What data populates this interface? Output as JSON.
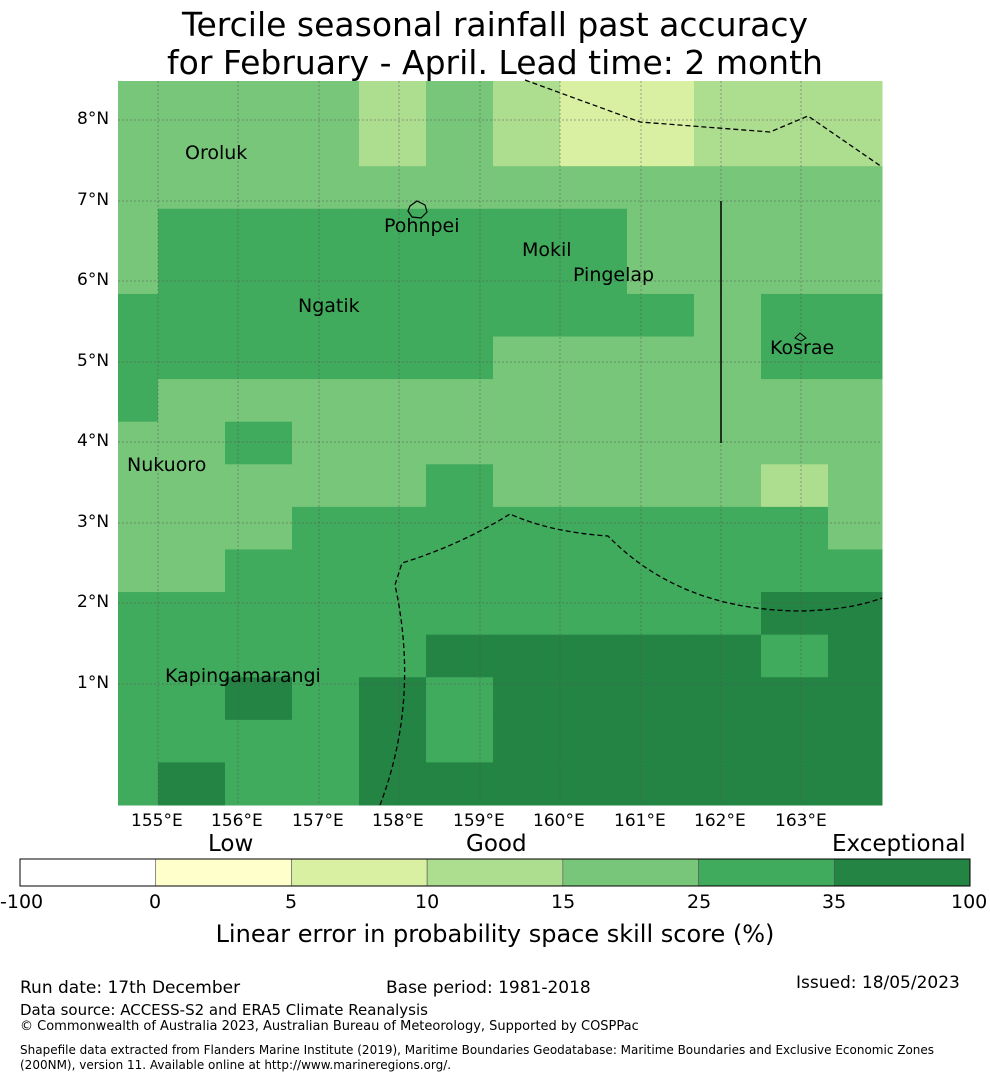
{
  "title_line1": "Tercile seasonal rainfall past accuracy",
  "title_line2": "for February - April. Lead time: 2 month",
  "y_labels": [
    "8°N",
    "7°N",
    "6°N",
    "5°N",
    "4°N",
    "3°N",
    "2°N",
    "1°N"
  ],
  "x_labels": [
    "155°E",
    "156°E",
    "157°E",
    "158°E",
    "159°E",
    "160°E",
    "161°E",
    "162°E",
    "163°E"
  ],
  "places": [
    "Oroluk",
    "Pohnpei",
    "Mokil",
    "Pingelap",
    "Ngatik",
    "Kosrae",
    "Nukuoro",
    "Kapingamarangi"
  ],
  "colorbar": {
    "categories": [
      "Low",
      "Good",
      "Exceptional"
    ],
    "ticks": [
      "-100",
      "0",
      "5",
      "10",
      "15",
      "25",
      "35",
      "100"
    ],
    "colors": [
      "#ffffff",
      "#ffffcc",
      "#d9f0a3",
      "#addd8e",
      "#78c679",
      "#41ab5d",
      "#238443"
    ],
    "title": "Linear error in probability space skill score (%)"
  },
  "footer": {
    "run_date": "Run date: 17th December",
    "base_period": "Base period: 1981-2018",
    "issued": "Issued: 18/05/2023",
    "data_source": "Data source: ACCESS-S2 and ERA5 Climate Reanalysis",
    "copyright": "© Commonwealth of Australia 2023, Australian Bureau of Meteorology, Supported by COSPPac",
    "shapefile_line1": "Shapefile data extracted from Flanders Marine Institute (2019), Maritime Boundaries Geodatabase: Maritime Boundaries and Exclusive Economic Zones",
    "shapefile_line2": "(200NM), version 11. Available online at http://www.marineregions.org/."
  },
  "grid": {
    "columns": [
      "154.5-155.0°E",
      "155.0-155.8°E",
      "155.8-156.7°E",
      "156.7-157.5°E",
      "157.5-158.3°E",
      "158.3-159.2°E",
      "159.2-160.0°E",
      "160.0-160.8°E",
      "160.8-161.7°E",
      "161.7-162.5°E",
      "162.5-163.3°E",
      "163.3-164.0°E"
    ],
    "rows_north_to_south": [
      [
        "good",
        "good",
        "good",
        "good",
        "fair",
        "good",
        "fair",
        "low",
        "low",
        "fair",
        "fair",
        "fair"
      ],
      [
        "good",
        "good",
        "good",
        "good",
        "fair",
        "good",
        "fair",
        "low",
        "low",
        "fair",
        "fair",
        "fair"
      ],
      [
        "good",
        "good",
        "good",
        "good",
        "good",
        "good",
        "good",
        "good",
        "good",
        "good",
        "good",
        "good"
      ],
      [
        "good",
        "high",
        "high",
        "high",
        "high",
        "high",
        "high",
        "high",
        "good",
        "good",
        "good",
        "good"
      ],
      [
        "good",
        "high",
        "high",
        "high",
        "high",
        "high",
        "high",
        "high",
        "good",
        "good",
        "good",
        "good"
      ],
      [
        "high",
        "high",
        "high",
        "high",
        "high",
        "high",
        "high",
        "high",
        "high",
        "good",
        "high",
        "high"
      ],
      [
        "high",
        "high",
        "high",
        "high",
        "high",
        "high",
        "good",
        "good",
        "good",
        "good",
        "high",
        "high"
      ],
      [
        "high",
        "good",
        "good",
        "good",
        "good",
        "good",
        "good",
        "good",
        "good",
        "good",
        "good",
        "good"
      ],
      [
        "good",
        "good",
        "high",
        "good",
        "good",
        "good",
        "good",
        "good",
        "good",
        "good",
        "good",
        "good"
      ],
      [
        "good",
        "good",
        "good",
        "good",
        "good",
        "high",
        "good",
        "good",
        "good",
        "good",
        "fair",
        "good"
      ],
      [
        "good",
        "good",
        "good",
        "high",
        "high",
        "high",
        "high",
        "high",
        "high",
        "high",
        "high",
        "good"
      ],
      [
        "good",
        "good",
        "high",
        "high",
        "high",
        "high",
        "high",
        "high",
        "high",
        "high",
        "high",
        "high"
      ],
      [
        "high",
        "high",
        "high",
        "high",
        "high",
        "high",
        "high",
        "high",
        "high",
        "high",
        "top",
        "top"
      ],
      [
        "high",
        "high",
        "high",
        "high",
        "high",
        "top",
        "top",
        "top",
        "top",
        "top",
        "high",
        "top"
      ],
      [
        "high",
        "high",
        "top",
        "high",
        "top",
        "high",
        "top",
        "top",
        "top",
        "top",
        "top",
        "top"
      ],
      [
        "high",
        "high",
        "high",
        "high",
        "top",
        "high",
        "top",
        "top",
        "top",
        "top",
        "top",
        "top"
      ],
      [
        "high",
        "top",
        "high",
        "high",
        "top",
        "top",
        "top",
        "top",
        "top",
        "top",
        "top",
        "top"
      ]
    ],
    "class_colors": {
      "low": "#d9f0a3",
      "fair": "#addd8e",
      "good": "#78c679",
      "high": "#41ab5d",
      "top": "#238443"
    }
  }
}
